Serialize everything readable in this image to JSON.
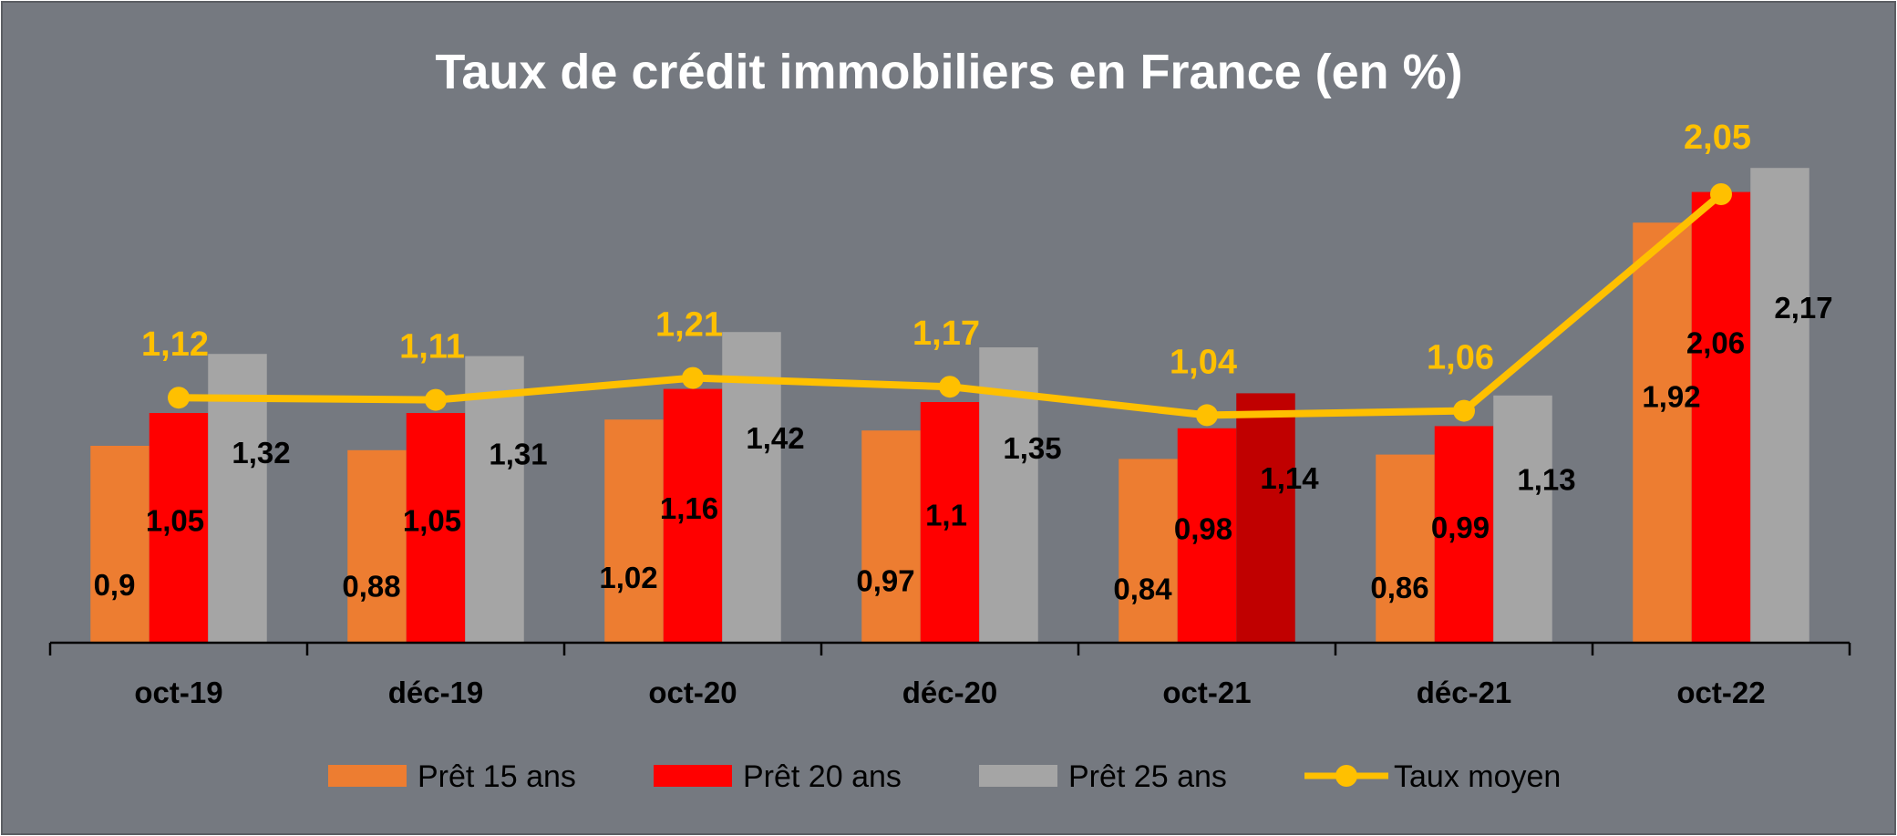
{
  "chart_data": {
    "type": "bar",
    "title": "Taux de crédit immobiliers en France (en %)",
    "categories": [
      "oct-19",
      "déc-19",
      "oct-20",
      "déc-20",
      "oct-21",
      "déc-21",
      "oct-22"
    ],
    "ylim": [
      0,
      2.3
    ],
    "grid": false,
    "legend_position": "bottom",
    "series": [
      {
        "name": "Prêt 15 ans",
        "type": "bar",
        "color": "#ed7d31",
        "values": [
          0.9,
          0.88,
          1.02,
          0.97,
          0.84,
          0.86,
          1.92
        ],
        "labels": [
          "0,9",
          "0,88",
          "1,02",
          "0,97",
          "0,84",
          "0,86",
          "1,92"
        ]
      },
      {
        "name": "Prêt 20 ans",
        "type": "bar",
        "color": "#ff0000",
        "values": [
          1.05,
          1.05,
          1.16,
          1.1,
          0.98,
          0.99,
          2.06
        ],
        "labels": [
          "1,05",
          "1,05",
          "1,16",
          "1,1",
          "0,98",
          "0,99",
          "2,06"
        ]
      },
      {
        "name": "Prêt 25 ans",
        "type": "bar",
        "color": "#a5a5a5",
        "highlight": {
          "index": 4,
          "color": "#c00000"
        },
        "values": [
          1.32,
          1.31,
          1.42,
          1.35,
          1.14,
          1.13,
          2.17
        ],
        "labels": [
          "1,32",
          "1,31",
          "1,42",
          "1,35",
          "1,14",
          "1,13",
          "2,17"
        ]
      },
      {
        "name": "Taux moyen",
        "type": "line",
        "color": "#ffc000",
        "values": [
          1.12,
          1.11,
          1.21,
          1.17,
          1.04,
          1.06,
          2.05
        ],
        "labels": [
          "1,12",
          "1,11",
          "1,21",
          "1,17",
          "1,04",
          "1,06",
          "2,05"
        ]
      }
    ]
  }
}
